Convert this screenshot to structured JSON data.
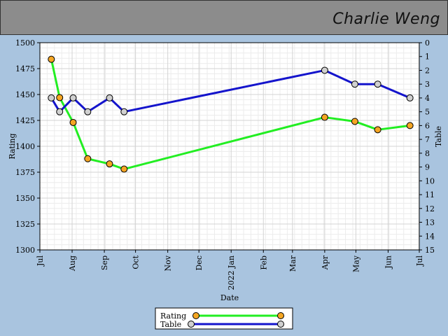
{
  "header": {
    "name": "Charlie Weng"
  },
  "colors": {
    "rating_line": "#22ee22",
    "table_line": "#1414cc",
    "rating_marker": "#f5a623",
    "table_marker": "#d0d0d0",
    "background": "#a9c4df",
    "plot_bg": "#ffffff"
  },
  "chart_data": {
    "type": "line",
    "xlabel": "Date",
    "ylabel_left": "Rating",
    "ylabel_right": "Table",
    "x_ticks": [
      {
        "date": "2021-07-01",
        "label": "Jul"
      },
      {
        "date": "2021-08-01",
        "label": "Aug"
      },
      {
        "date": "2021-09-01",
        "label": "Sep"
      },
      {
        "date": "2021-10-01",
        "label": "Oct"
      },
      {
        "date": "2021-11-01",
        "label": "Nov"
      },
      {
        "date": "2021-12-01",
        "label": "Dec"
      },
      {
        "date": "2022-01-01",
        "label": "2022 Jan"
      },
      {
        "date": "2022-02-01",
        "label": "Feb"
      },
      {
        "date": "2022-03-01",
        "label": "Mar"
      },
      {
        "date": "2022-04-01",
        "label": "Apr"
      },
      {
        "date": "2022-05-01",
        "label": "May"
      },
      {
        "date": "2022-06-01",
        "label": "Jun"
      },
      {
        "date": "2022-07-01",
        "label": "Jul"
      }
    ],
    "xlim": [
      "2021-07-01",
      "2022-07-01"
    ],
    "ylim_left": [
      1300,
      1500
    ],
    "y_ticks_left": [
      1300,
      1325,
      1350,
      1375,
      1400,
      1425,
      1450,
      1475,
      1500
    ],
    "ylim_right": [
      15,
      0
    ],
    "y_ticks_right": [
      0,
      1,
      2,
      3,
      4,
      5,
      6,
      7,
      8,
      9,
      10,
      11,
      12,
      13,
      14,
      15
    ],
    "grid": true,
    "legend_position": "bottom-center",
    "series": [
      {
        "name": "Rating",
        "axis": "left",
        "points": [
          {
            "x": "2021-07-12",
            "y": 1484
          },
          {
            "x": "2021-07-20",
            "y": 1447
          },
          {
            "x": "2021-08-02",
            "y": 1423
          },
          {
            "x": "2021-08-16",
            "y": 1388
          },
          {
            "x": "2021-09-06",
            "y": 1383
          },
          {
            "x": "2021-09-20",
            "y": 1378
          },
          {
            "x": "2022-04-01",
            "y": 1428
          },
          {
            "x": "2022-04-30",
            "y": 1424
          },
          {
            "x": "2022-05-22",
            "y": 1416
          },
          {
            "x": "2022-06-22",
            "y": 1420
          }
        ]
      },
      {
        "name": "Table",
        "axis": "right",
        "points": [
          {
            "x": "2021-07-12",
            "y": 4
          },
          {
            "x": "2021-07-20",
            "y": 5
          },
          {
            "x": "2021-08-02",
            "y": 4
          },
          {
            "x": "2021-08-16",
            "y": 5
          },
          {
            "x": "2021-09-06",
            "y": 4
          },
          {
            "x": "2021-09-20",
            "y": 5
          },
          {
            "x": "2022-04-01",
            "y": 2
          },
          {
            "x": "2022-04-30",
            "y": 3
          },
          {
            "x": "2022-05-22",
            "y": 3
          },
          {
            "x": "2022-06-22",
            "y": 4
          }
        ]
      }
    ]
  }
}
